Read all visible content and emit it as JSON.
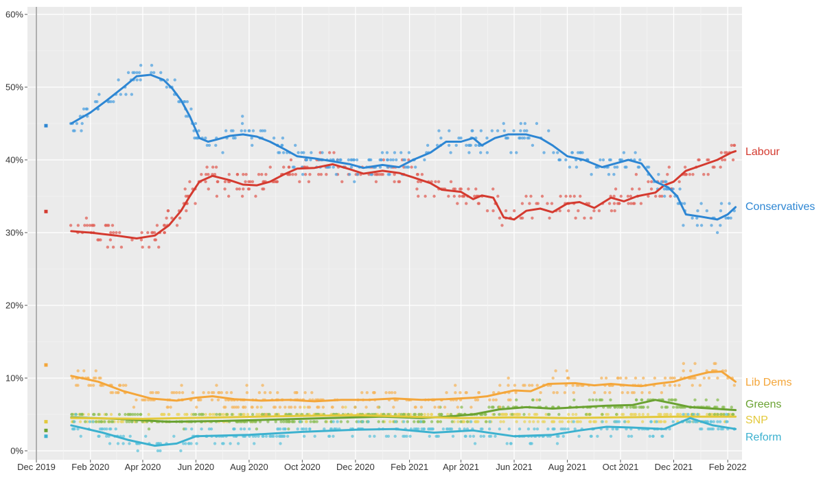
{
  "chart_data": {
    "type": "scatter",
    "x_range": [
      "2019-12-01",
      "2022-02-15"
    ],
    "ylim": [
      0,
      60
    ],
    "grid": true,
    "y_ticks": [
      {
        "value": 0,
        "label": "0%"
      },
      {
        "value": 10,
        "label": "10%"
      },
      {
        "value": 20,
        "label": "20%"
      },
      {
        "value": 30,
        "label": "30%"
      },
      {
        "value": 40,
        "label": "40%"
      },
      {
        "value": 50,
        "label": "50%"
      },
      {
        "value": 60,
        "label": "60%"
      }
    ],
    "x_ticks": [
      {
        "value": "2019-12-01",
        "label": "Dec 2019"
      },
      {
        "value": "2020-02-01",
        "label": "Feb 2020"
      },
      {
        "value": "2020-04-01",
        "label": "Apr 2020"
      },
      {
        "value": "2020-06-01",
        "label": "Jun 2020"
      },
      {
        "value": "2020-08-01",
        "label": "Aug 2020"
      },
      {
        "value": "2020-10-01",
        "label": "Oct 2020"
      },
      {
        "value": "2020-12-01",
        "label": "Dec 2020"
      },
      {
        "value": "2021-02-01",
        "label": "Feb 2021"
      },
      {
        "value": "2021-04-01",
        "label": "Apr 2021"
      },
      {
        "value": "2021-06-01",
        "label": "Jun 2021"
      },
      {
        "value": "2021-08-01",
        "label": "Aug 2021"
      },
      {
        "value": "2021-10-01",
        "label": "Oct 2021"
      },
      {
        "value": "2021-12-01",
        "label": "Dec 2021"
      },
      {
        "value": "2022-02-01",
        "label": "Feb 2022"
      }
    ],
    "election_result": {
      "date": "2019-12-12",
      "values": {
        "Conservatives": 44.7,
        "Labour": 32.9,
        "Lib Dems": 11.8,
        "SNP": 4.0,
        "Greens": 2.8,
        "Reform": 2.0
      }
    },
    "series": [
      {
        "name": "Labour",
        "color": "#d43a2f",
        "dot_color": "#e06158",
        "jitter": 1.6,
        "trend": [
          [
            "2020-01-10",
            30.2
          ],
          [
            "2020-02-01",
            30.0
          ],
          [
            "2020-03-01",
            29.6
          ],
          [
            "2020-03-25",
            29.2
          ],
          [
            "2020-04-15",
            29.6
          ],
          [
            "2020-05-01",
            31.0
          ],
          [
            "2020-05-15",
            33.0
          ],
          [
            "2020-05-25",
            35.0
          ],
          [
            "2020-06-05",
            37.0
          ],
          [
            "2020-06-20",
            37.8
          ],
          [
            "2020-07-10",
            37.2
          ],
          [
            "2020-07-25",
            36.6
          ],
          [
            "2020-08-10",
            36.5
          ],
          [
            "2020-08-25",
            37.0
          ],
          [
            "2020-09-10",
            38.0
          ],
          [
            "2020-09-25",
            38.8
          ],
          [
            "2020-10-15",
            38.9
          ],
          [
            "2020-11-05",
            39.4
          ],
          [
            "2020-11-25",
            38.7
          ],
          [
            "2020-12-10",
            38.1
          ],
          [
            "2021-01-01",
            38.5
          ],
          [
            "2021-01-20",
            38.2
          ],
          [
            "2021-02-05",
            37.6
          ],
          [
            "2021-02-25",
            36.8
          ],
          [
            "2021-03-10",
            35.9
          ],
          [
            "2021-04-01",
            35.6
          ],
          [
            "2021-04-15",
            34.6
          ],
          [
            "2021-04-25",
            35.1
          ],
          [
            "2021-05-08",
            34.8
          ],
          [
            "2021-05-20",
            32.1
          ],
          [
            "2021-06-01",
            31.8
          ],
          [
            "2021-06-15",
            33.0
          ],
          [
            "2021-07-01",
            33.3
          ],
          [
            "2021-07-15",
            32.8
          ],
          [
            "2021-08-01",
            34.0
          ],
          [
            "2021-08-15",
            34.2
          ],
          [
            "2021-09-01",
            33.4
          ],
          [
            "2021-09-20",
            34.8
          ],
          [
            "2021-10-05",
            34.3
          ],
          [
            "2021-10-20",
            35.0
          ],
          [
            "2021-11-10",
            35.5
          ],
          [
            "2021-11-20",
            36.5
          ],
          [
            "2021-12-01",
            37.0
          ],
          [
            "2021-12-15",
            38.5
          ],
          [
            "2022-01-01",
            39.2
          ],
          [
            "2022-01-20",
            40.0
          ],
          [
            "2022-02-05",
            41.0
          ],
          [
            "2022-02-10",
            41.2
          ]
        ]
      },
      {
        "name": "Conservatives",
        "color": "#2d86d3",
        "dot_color": "#52a3e0",
        "jitter": 1.6,
        "trend": [
          [
            "2020-01-10",
            45.0
          ],
          [
            "2020-02-01",
            46.5
          ],
          [
            "2020-02-20",
            48.2
          ],
          [
            "2020-03-10",
            50.0
          ],
          [
            "2020-03-25",
            51.5
          ],
          [
            "2020-04-10",
            51.7
          ],
          [
            "2020-04-25",
            51.0
          ],
          [
            "2020-05-05",
            49.8
          ],
          [
            "2020-05-15",
            48.2
          ],
          [
            "2020-05-25",
            46.0
          ],
          [
            "2020-06-05",
            43.0
          ],
          [
            "2020-06-15",
            42.5
          ],
          [
            "2020-06-25",
            42.8
          ],
          [
            "2020-07-10",
            43.3
          ],
          [
            "2020-07-25",
            43.5
          ],
          [
            "2020-08-10",
            43.2
          ],
          [
            "2020-08-25",
            42.5
          ],
          [
            "2020-09-10",
            41.5
          ],
          [
            "2020-09-25",
            40.5
          ],
          [
            "2020-10-15",
            40.2
          ],
          [
            "2020-11-05",
            39.8
          ],
          [
            "2020-11-25",
            39.4
          ],
          [
            "2020-12-10",
            38.9
          ],
          [
            "2021-01-01",
            39.3
          ],
          [
            "2021-01-20",
            39.0
          ],
          [
            "2021-02-05",
            40.0
          ],
          [
            "2021-02-25",
            41.0
          ],
          [
            "2021-03-15",
            42.5
          ],
          [
            "2021-04-01",
            42.5
          ],
          [
            "2021-04-15",
            43.0
          ],
          [
            "2021-04-25",
            42.0
          ],
          [
            "2021-05-10",
            43.0
          ],
          [
            "2021-05-25",
            43.5
          ],
          [
            "2021-06-15",
            43.5
          ],
          [
            "2021-07-01",
            43.0
          ],
          [
            "2021-07-15",
            42.0
          ],
          [
            "2021-08-01",
            40.5
          ],
          [
            "2021-08-20",
            40.0
          ],
          [
            "2021-09-10",
            39.0
          ],
          [
            "2021-09-25",
            39.5
          ],
          [
            "2021-10-10",
            40.0
          ],
          [
            "2021-10-25",
            39.5
          ],
          [
            "2021-11-10",
            37.0
          ],
          [
            "2021-11-25",
            36.2
          ],
          [
            "2021-12-05",
            35.0
          ],
          [
            "2021-12-15",
            32.5
          ],
          [
            "2022-01-01",
            32.2
          ],
          [
            "2022-01-20",
            31.8
          ],
          [
            "2022-02-01",
            32.5
          ],
          [
            "2022-02-10",
            33.5
          ]
        ]
      },
      {
        "name": "Lib Dems",
        "color": "#f4a63a",
        "dot_color": "#f6b65e",
        "jitter": 1.2,
        "trend": [
          [
            "2020-01-10",
            10.3
          ],
          [
            "2020-02-10",
            9.5
          ],
          [
            "2020-03-10",
            8.2
          ],
          [
            "2020-04-10",
            7.2
          ],
          [
            "2020-05-10",
            6.9
          ],
          [
            "2020-06-01",
            7.3
          ],
          [
            "2020-06-20",
            7.5
          ],
          [
            "2020-07-15",
            7.1
          ],
          [
            "2020-08-15",
            6.9
          ],
          [
            "2020-09-15",
            7.0
          ],
          [
            "2020-10-15",
            6.8
          ],
          [
            "2020-11-15",
            7.0
          ],
          [
            "2020-12-15",
            7.0
          ],
          [
            "2021-01-15",
            7.2
          ],
          [
            "2021-02-15",
            7.0
          ],
          [
            "2021-03-15",
            7.1
          ],
          [
            "2021-04-15",
            7.3
          ],
          [
            "2021-05-01",
            7.5
          ],
          [
            "2021-05-20",
            8.0
          ],
          [
            "2021-06-01",
            8.3
          ],
          [
            "2021-06-20",
            8.2
          ],
          [
            "2021-07-10",
            9.2
          ],
          [
            "2021-08-10",
            9.3
          ],
          [
            "2021-09-01",
            9.0
          ],
          [
            "2021-09-20",
            9.2
          ],
          [
            "2021-10-10",
            9.0
          ],
          [
            "2021-10-25",
            8.9
          ],
          [
            "2021-11-10",
            9.2
          ],
          [
            "2021-12-01",
            9.5
          ],
          [
            "2021-12-20",
            10.2
          ],
          [
            "2022-01-10",
            10.8
          ],
          [
            "2022-01-25",
            10.9
          ],
          [
            "2022-02-10",
            9.5
          ]
        ]
      },
      {
        "name": "Greens",
        "color": "#6aa232",
        "dot_color": "#8bbd55",
        "jitter": 0.8,
        "trend": [
          [
            "2020-01-10",
            4.6
          ],
          [
            "2020-03-01",
            4.4
          ],
          [
            "2020-05-01",
            4.0
          ],
          [
            "2020-07-01",
            4.1
          ],
          [
            "2020-09-01",
            4.3
          ],
          [
            "2020-11-01",
            4.5
          ],
          [
            "2021-01-01",
            4.7
          ],
          [
            "2021-02-15",
            4.5
          ],
          [
            "2021-03-15",
            4.7
          ],
          [
            "2021-04-15",
            5.0
          ],
          [
            "2021-05-15",
            5.7
          ],
          [
            "2021-06-15",
            6.0
          ],
          [
            "2021-07-15",
            5.8
          ],
          [
            "2021-08-15",
            6.0
          ],
          [
            "2021-09-15",
            6.2
          ],
          [
            "2021-10-15",
            6.3
          ],
          [
            "2021-11-10",
            7.0
          ],
          [
            "2021-12-01",
            6.5
          ],
          [
            "2021-12-20",
            6.0
          ],
          [
            "2022-01-15",
            5.8
          ],
          [
            "2022-02-10",
            5.6
          ]
        ]
      },
      {
        "name": "SNP",
        "color": "#e3c93b",
        "dot_color": "#ead460",
        "jitter": 0.6,
        "trend": [
          [
            "2020-01-10",
            4.5
          ],
          [
            "2020-04-01",
            4.4
          ],
          [
            "2020-07-01",
            4.6
          ],
          [
            "2020-10-01",
            4.8
          ],
          [
            "2020-12-01",
            4.9
          ],
          [
            "2021-02-01",
            4.7
          ],
          [
            "2021-04-01",
            4.5
          ],
          [
            "2021-06-01",
            4.6
          ],
          [
            "2021-08-01",
            4.5
          ],
          [
            "2021-10-01",
            4.6
          ],
          [
            "2021-12-01",
            4.7
          ],
          [
            "2022-02-10",
            4.7
          ]
        ]
      },
      {
        "name": "Reform",
        "color": "#3cb1cf",
        "dot_color": "#62c4dc",
        "jitter": 1.0,
        "trend": [
          [
            "2020-01-10",
            3.5
          ],
          [
            "2020-02-15",
            2.5
          ],
          [
            "2020-03-15",
            1.5
          ],
          [
            "2020-04-15",
            0.7
          ],
          [
            "2020-05-10",
            1.0
          ],
          [
            "2020-06-01",
            2.0
          ],
          [
            "2020-08-01",
            2.2
          ],
          [
            "2020-10-01",
            2.6
          ],
          [
            "2020-12-01",
            2.9
          ],
          [
            "2021-01-15",
            3.0
          ],
          [
            "2021-03-01",
            2.5
          ],
          [
            "2021-04-15",
            2.8
          ],
          [
            "2021-06-01",
            2.0
          ],
          [
            "2021-07-15",
            2.2
          ],
          [
            "2021-08-15",
            2.8
          ],
          [
            "2021-09-15",
            3.3
          ],
          [
            "2021-10-15",
            3.2
          ],
          [
            "2021-11-20",
            3.0
          ],
          [
            "2021-12-20",
            4.5
          ],
          [
            "2022-01-15",
            3.5
          ],
          [
            "2022-02-10",
            3.0
          ]
        ]
      }
    ]
  }
}
